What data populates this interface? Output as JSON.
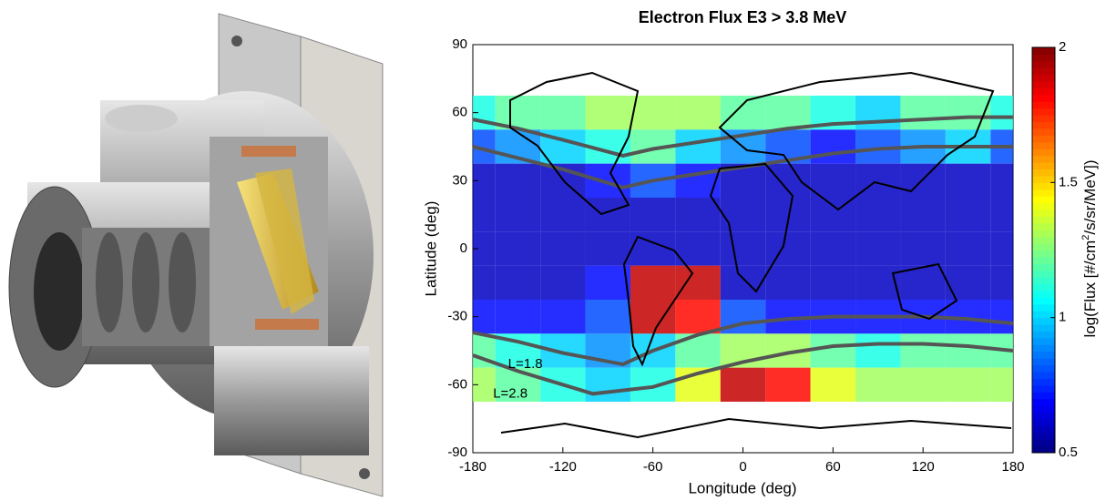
{
  "chart_data": {
    "type": "heatmap",
    "title": "Electron Flux E3 > 3.8 MeV",
    "xlabel": "Longitude (deg)",
    "ylabel": "Latitude (deg)",
    "colorbar_label": [
      "log(Flux [#/cm",
      "2",
      "/s/sr/MeV])"
    ],
    "x": [
      -180,
      -150,
      -120,
      -90,
      -60,
      -30,
      0,
      30,
      60,
      90,
      120,
      150,
      180
    ],
    "y": [
      60,
      45,
      30,
      15,
      0,
      -15,
      -30,
      -45,
      -60
    ],
    "z": [
      [
        1.1,
        1.2,
        1.2,
        1.3,
        1.3,
        1.3,
        1.2,
        1.2,
        1.1,
        1.0,
        1.2,
        1.2,
        1.1
      ],
      [
        0.8,
        0.9,
        1.0,
        1.1,
        1.2,
        1.0,
        0.9,
        0.8,
        0.7,
        0.8,
        0.9,
        1.0,
        0.8
      ],
      [
        0.6,
        0.6,
        0.6,
        0.7,
        0.8,
        0.7,
        0.6,
        0.6,
        0.6,
        0.6,
        0.6,
        0.6,
        0.6
      ],
      [
        0.6,
        0.6,
        0.6,
        0.6,
        0.6,
        0.6,
        0.6,
        0.6,
        0.6,
        0.6,
        0.6,
        0.6,
        0.6
      ],
      [
        0.6,
        0.6,
        0.6,
        0.6,
        0.6,
        0.6,
        0.6,
        0.6,
        0.6,
        0.6,
        0.6,
        0.6,
        0.6
      ],
      [
        0.6,
        0.6,
        0.6,
        0.7,
        1.9,
        1.9,
        0.6,
        0.6,
        0.6,
        0.6,
        0.6,
        0.6,
        0.6
      ],
      [
        0.7,
        0.7,
        0.7,
        0.8,
        1.9,
        1.8,
        0.8,
        0.7,
        0.7,
        0.7,
        0.7,
        0.7,
        0.7
      ],
      [
        1.2,
        1.1,
        1.0,
        0.9,
        1.0,
        1.2,
        1.3,
        1.3,
        1.2,
        1.1,
        1.2,
        1.2,
        1.2
      ],
      [
        1.3,
        1.2,
        1.1,
        1.0,
        1.1,
        1.4,
        1.9,
        1.8,
        1.4,
        1.3,
        1.3,
        1.3,
        1.3
      ]
    ],
    "zlim": [
      0.5,
      2
    ],
    "zticks": [
      0.5,
      1,
      1.5,
      2
    ],
    "xlim": [
      -180,
      180
    ],
    "xticks": [
      -180,
      -120,
      -60,
      0,
      60,
      120,
      180
    ],
    "ylim": [
      -90,
      90
    ],
    "yticks": [
      -90,
      -60,
      -30,
      0,
      30,
      60,
      90
    ],
    "lines": [
      {
        "color": "#555555",
        "x": [
          -180,
          -150,
          -120,
          -80,
          -60,
          -30,
          0,
          30,
          60,
          90,
          120,
          150,
          180
        ],
        "y": [
          57,
          53,
          48,
          41,
          44,
          47,
          50,
          53,
          55,
          56,
          57,
          58,
          58
        ]
      },
      {
        "color": "#555555",
        "x": [
          -180,
          -150,
          -120,
          -80,
          -60,
          -30,
          0,
          30,
          60,
          90,
          120,
          150,
          180
        ],
        "y": [
          45,
          40,
          35,
          27,
          30,
          33,
          36,
          39,
          42,
          44,
          45,
          45,
          45
        ]
      },
      {
        "color": "#555555",
        "x": [
          -180,
          -150,
          -120,
          -80,
          -60,
          -30,
          0,
          30,
          60,
          90,
          120,
          150,
          180
        ],
        "y": [
          -37,
          -41,
          -46,
          -51,
          -45,
          -38,
          -33,
          -31,
          -30,
          -30,
          -30,
          -31,
          -33
        ]
      },
      {
        "color": "#555555",
        "x": [
          -180,
          -150,
          -120,
          -100,
          -60,
          -30,
          0,
          30,
          60,
          90,
          120,
          150,
          180
        ],
        "y": [
          -47,
          -54,
          -60,
          -64,
          -61,
          -55,
          -50,
          -46,
          -43,
          -42,
          -42,
          -43,
          -45
        ]
      }
    ],
    "annotations": [
      {
        "text": "L=1.8",
        "x": -145,
        "y": -51
      },
      {
        "text": "L=2.8",
        "x": -155,
        "y": -64
      }
    ]
  }
}
